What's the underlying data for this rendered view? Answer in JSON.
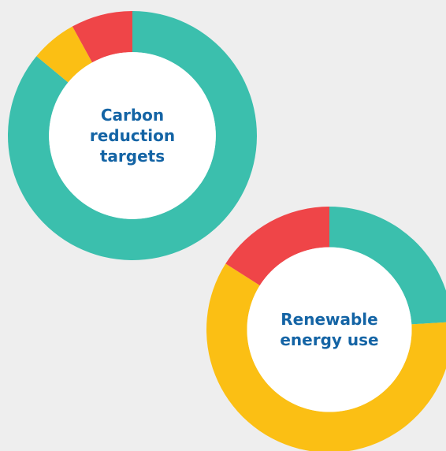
{
  "chart_data": [
    {
      "type": "donut",
      "title": "Carbon reduction targets",
      "values": [
        86,
        6,
        8
      ],
      "colors": [
        "#3bbfad",
        "#fbbf14",
        "#ef4548"
      ]
    },
    {
      "type": "donut",
      "title": "Renewable energy use",
      "values": [
        24,
        60,
        16
      ],
      "colors": [
        "#3bbfad",
        "#fbbf14",
        "#ef4548"
      ]
    }
  ]
}
